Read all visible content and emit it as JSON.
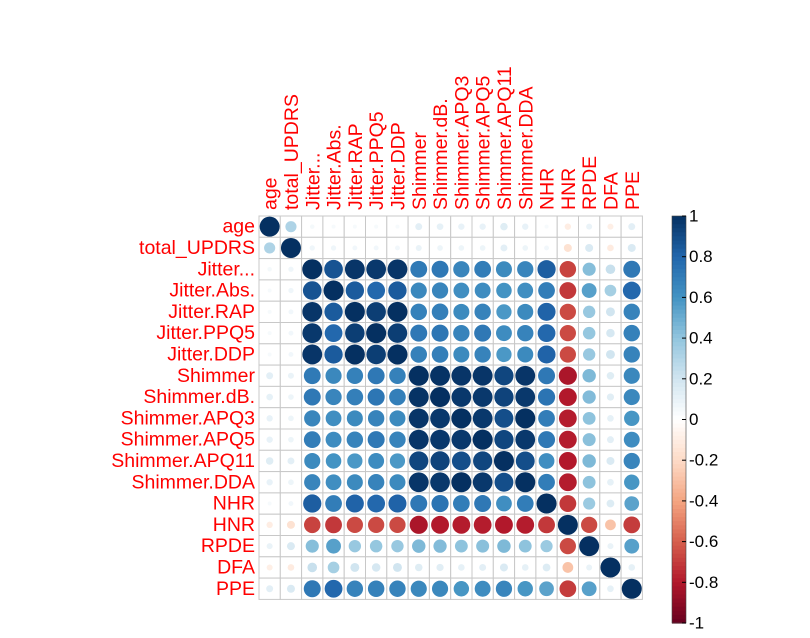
{
  "chart_data": {
    "type": "heatmap",
    "style": "circle-correlation-matrix",
    "variables": [
      "age",
      "total_UPDRS",
      "Jitter...",
      "Jitter.Abs.",
      "Jitter.RAP",
      "Jitter.PPQ5",
      "Jitter.DDP",
      "Shimmer",
      "Shimmer.dB.",
      "Shimmer.APQ3",
      "Shimmer.APQ5",
      "Shimmer.APQ11",
      "Shimmer.DDA",
      "NHR",
      "HNR",
      "RPDE",
      "DFA",
      "PPE"
    ],
    "matrix": [
      [
        1.0,
        0.31,
        0.05,
        0.04,
        0.04,
        0.04,
        0.04,
        0.12,
        0.11,
        0.1,
        0.1,
        0.14,
        0.1,
        0.04,
        -0.1,
        0.09,
        -0.09,
        0.12
      ],
      [
        0.31,
        1.0,
        0.07,
        0.07,
        0.06,
        0.06,
        0.06,
        0.09,
        0.08,
        0.08,
        0.08,
        0.12,
        0.08,
        0.06,
        -0.16,
        0.16,
        -0.11,
        0.16
      ],
      [
        0.05,
        0.07,
        1.0,
        0.87,
        0.98,
        0.97,
        0.98,
        0.71,
        0.72,
        0.66,
        0.7,
        0.64,
        0.66,
        0.83,
        -0.68,
        0.43,
        0.23,
        0.72
      ],
      [
        0.04,
        0.07,
        0.87,
        1.0,
        0.84,
        0.79,
        0.84,
        0.65,
        0.66,
        0.62,
        0.63,
        0.6,
        0.62,
        0.7,
        -0.71,
        0.55,
        0.34,
        0.79
      ],
      [
        0.04,
        0.06,
        0.98,
        0.84,
        1.0,
        0.95,
        1.0,
        0.68,
        0.69,
        0.64,
        0.67,
        0.58,
        0.64,
        0.81,
        -0.66,
        0.38,
        0.2,
        0.67
      ],
      [
        0.04,
        0.06,
        0.97,
        0.79,
        0.95,
        1.0,
        0.95,
        0.72,
        0.73,
        0.67,
        0.72,
        0.63,
        0.67,
        0.79,
        -0.66,
        0.39,
        0.18,
        0.68
      ],
      [
        0.04,
        0.06,
        0.98,
        0.84,
        1.0,
        0.95,
        1.0,
        0.68,
        0.69,
        0.64,
        0.67,
        0.58,
        0.64,
        0.81,
        -0.66,
        0.38,
        0.2,
        0.67
      ],
      [
        0.12,
        0.09,
        0.71,
        0.65,
        0.68,
        0.72,
        0.68,
        1.0,
        0.99,
        0.98,
        0.98,
        0.92,
        0.98,
        0.72,
        -0.82,
        0.45,
        0.14,
        0.65
      ],
      [
        0.11,
        0.08,
        0.72,
        0.66,
        0.69,
        0.73,
        0.69,
        0.99,
        1.0,
        0.97,
        0.97,
        0.93,
        0.97,
        0.74,
        -0.8,
        0.44,
        0.13,
        0.65
      ],
      [
        0.1,
        0.08,
        0.66,
        0.62,
        0.64,
        0.67,
        0.64,
        0.98,
        0.97,
        1.0,
        0.97,
        0.89,
        1.0,
        0.7,
        -0.79,
        0.41,
        0.11,
        0.59
      ],
      [
        0.1,
        0.08,
        0.7,
        0.63,
        0.67,
        0.72,
        0.67,
        0.98,
        0.97,
        0.97,
        1.0,
        0.92,
        0.97,
        0.72,
        -0.79,
        0.42,
        0.12,
        0.63
      ],
      [
        0.14,
        0.12,
        0.64,
        0.6,
        0.58,
        0.63,
        0.58,
        0.92,
        0.93,
        0.89,
        0.92,
        1.0,
        0.89,
        0.62,
        -0.8,
        0.45,
        0.16,
        0.66
      ],
      [
        0.1,
        0.08,
        0.66,
        0.62,
        0.64,
        0.67,
        0.64,
        0.98,
        0.97,
        1.0,
        0.97,
        0.89,
        1.0,
        0.7,
        -0.79,
        0.41,
        0.11,
        0.59
      ],
      [
        0.04,
        0.06,
        0.83,
        0.7,
        0.81,
        0.79,
        0.81,
        0.72,
        0.74,
        0.7,
        0.72,
        0.62,
        0.7,
        1.0,
        -0.71,
        0.37,
        0.15,
        0.54
      ],
      [
        -0.1,
        -0.16,
        -0.68,
        -0.71,
        -0.66,
        -0.66,
        -0.66,
        -0.82,
        -0.8,
        -0.79,
        -0.79,
        -0.8,
        -0.79,
        -0.71,
        1.0,
        -0.66,
        -0.29,
        -0.7
      ],
      [
        0.09,
        0.16,
        0.43,
        0.55,
        0.38,
        0.39,
        0.38,
        0.45,
        0.44,
        0.41,
        0.42,
        0.45,
        0.41,
        0.37,
        -0.66,
        1.0,
        0.09,
        0.55
      ],
      [
        -0.09,
        -0.11,
        0.23,
        0.34,
        0.2,
        0.18,
        0.2,
        0.14,
        0.13,
        0.11,
        0.12,
        0.16,
        0.11,
        0.15,
        -0.29,
        0.09,
        1.0,
        0.11
      ],
      [
        0.12,
        0.16,
        0.72,
        0.79,
        0.67,
        0.68,
        0.67,
        0.65,
        0.65,
        0.59,
        0.63,
        0.66,
        0.59,
        0.54,
        -0.7,
        0.55,
        0.11,
        1.0
      ]
    ],
    "colorbar": {
      "range": [
        -1,
        1
      ],
      "ticks": [
        "1",
        "0.8",
        "0.6",
        "0.4",
        "0.2",
        "0",
        "-0.2",
        "-0.4",
        "-0.6",
        "-0.8",
        "-1"
      ],
      "tick_values": [
        1,
        0.8,
        0.6,
        0.4,
        0.2,
        0,
        -0.2,
        -0.4,
        -0.6,
        -0.8,
        -1
      ]
    },
    "colors": {
      "label": "#ff0000",
      "grid": "#c8c8c8",
      "palette": [
        "#67001f",
        "#b2182b",
        "#d6604d",
        "#f4a582",
        "#fddbc7",
        "#ffffff",
        "#d1e5f0",
        "#92c5de",
        "#4393c3",
        "#2166ac",
        "#053061"
      ]
    }
  }
}
